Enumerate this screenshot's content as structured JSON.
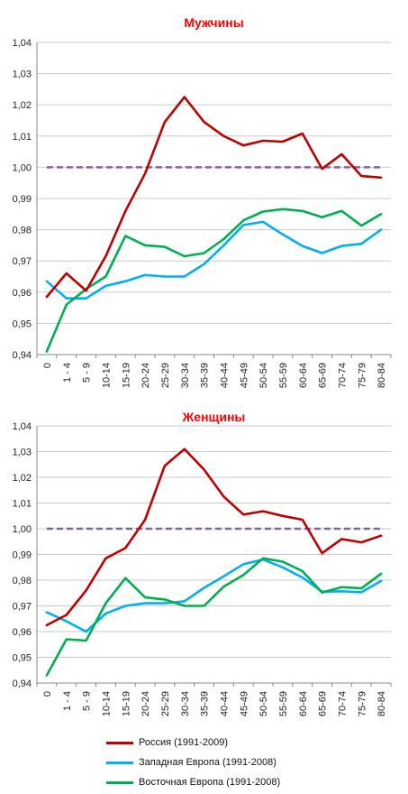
{
  "chart_data": [
    {
      "type": "line",
      "title": "Мужчины",
      "categories": [
        "0",
        "1 - 4",
        "5 - 9",
        "10-14",
        "15-19",
        "20-24",
        "25-29",
        "30-34",
        "35-39",
        "40-44",
        "45-49",
        "50-54",
        "55-59",
        "60-64",
        "65-69",
        "70-74",
        "75-79",
        "80-84"
      ],
      "ylim": [
        0.94,
        1.04
      ],
      "yticks": [
        "0,94",
        "0,95",
        "0,96",
        "0,97",
        "0,98",
        "0,99",
        "1,00",
        "1,01",
        "1,02",
        "1,03",
        "1,04"
      ],
      "grid": true,
      "reference_line": 1.0,
      "series": [
        {
          "name": "Россия (1991-2009)",
          "color": "#c00000",
          "values": [
            0.9585,
            0.966,
            0.9605,
            0.9715,
            0.986,
            0.998,
            1.0145,
            1.0225,
            1.0145,
            1.01,
            1.007,
            1.0085,
            1.0082,
            1.0108,
            0.9995,
            1.0042,
            0.9972,
            0.9967
          ]
        },
        {
          "name": "Западная Европа (1991-2008)",
          "color": "#00b0f0",
          "values": [
            0.9635,
            0.958,
            0.958,
            0.962,
            0.9635,
            0.9655,
            0.965,
            0.965,
            0.969,
            0.975,
            0.9815,
            0.9825,
            0.9785,
            0.9748,
            0.9725,
            0.9748,
            0.9755,
            0.98
          ]
        },
        {
          "name": "Восточная Европа (1991-2008)",
          "color": "#00b050",
          "values": [
            0.941,
            0.956,
            0.961,
            0.965,
            0.978,
            0.975,
            0.9745,
            0.9715,
            0.9725,
            0.977,
            0.983,
            0.9858,
            0.9866,
            0.986,
            0.984,
            0.986,
            0.9813,
            0.985
          ]
        }
      ]
    },
    {
      "type": "line",
      "title": "Женщины",
      "categories": [
        "0",
        "1 - 4",
        "5 - 9",
        "10-14",
        "15-19",
        "20-24",
        "25-29",
        "30-34",
        "35-39",
        "40-44",
        "45-49",
        "50-54",
        "55-59",
        "60-64",
        "65-69",
        "70-74",
        "75-79",
        "80-84"
      ],
      "ylim": [
        0.94,
        1.04
      ],
      "yticks": [
        "0,94",
        "0,95",
        "0,96",
        "0,97",
        "0,98",
        "0,99",
        "1,00",
        "1,01",
        "1,02",
        "1,03",
        "1,04"
      ],
      "grid": true,
      "reference_line": 1.0,
      "series": [
        {
          "name": "Россия (1991-2009)",
          "color": "#c00000",
          "values": [
            0.9625,
            0.9665,
            0.976,
            0.9885,
            0.9925,
            1.0035,
            1.0245,
            1.031,
            1.023,
            1.0125,
            1.0055,
            1.0068,
            1.005,
            1.0035,
            0.9905,
            0.996,
            0.9947,
            0.9973
          ]
        },
        {
          "name": "Западная Европа (1991-2008)",
          "color": "#00b0f0",
          "values": [
            0.9675,
            0.964,
            0.96,
            0.967,
            0.97,
            0.971,
            0.971,
            0.9718,
            0.977,
            0.9815,
            0.9862,
            0.988,
            0.985,
            0.981,
            0.9755,
            0.9757,
            0.9753,
            0.9797
          ]
        },
        {
          "name": "Восточная Европа (1991-2008)",
          "color": "#00b050",
          "values": [
            0.943,
            0.957,
            0.9565,
            0.971,
            0.9808,
            0.9733,
            0.9725,
            0.97,
            0.97,
            0.9775,
            0.982,
            0.9885,
            0.9872,
            0.9835,
            0.9752,
            0.9773,
            0.9768,
            0.9825
          ]
        }
      ]
    }
  ],
  "legend": [
    {
      "label": "Россия (1991-2009)",
      "color": "#c00000"
    },
    {
      "label": "Западная Европа (1991-2008)",
      "color": "#00b0f0"
    },
    {
      "label": "Восточная Европа (1991-2008)",
      "color": "#00b050"
    }
  ]
}
